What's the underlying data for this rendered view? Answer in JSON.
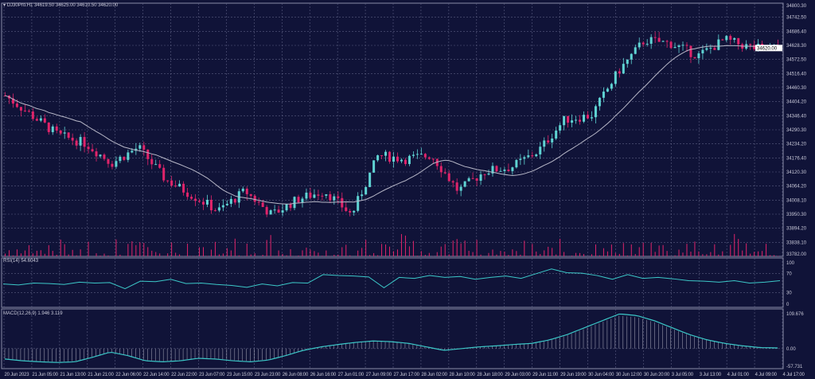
{
  "header": {
    "symbol": "DJ30Pro.H1",
    "ohlc": "34619.50 34625.00 34610.50 34620.00"
  },
  "colors": {
    "background": "#101338",
    "bull": "#5fd3d3",
    "bear": "#e0246a",
    "ma": "#b8b8c8",
    "grid": "#5a5d80",
    "indicator": "#3cc8c8"
  },
  "chart_data": [
    {
      "type": "candlestick",
      "title": "DJ30Pro.H1",
      "current_price": "34620.00",
      "ylim": [
        33782.0,
        34800.3
      ],
      "y_ticks": [
        "34800.30",
        "34742.50",
        "34686.40",
        "34628.30",
        "34572.50",
        "34516.40",
        "34460.30",
        "34404.20",
        "34346.40",
        "34290.30",
        "34234.20",
        "34176.40",
        "34120.30",
        "34064.20",
        "34008.10",
        "33950.30",
        "33894.20",
        "33838.10",
        "33782.00"
      ],
      "x_ticks": [
        "20 Jun 2023",
        "21 Jun 05:00",
        "21 Jun 13:00",
        "21 Jun 21:00",
        "22 Jun 06:00",
        "22 Jun 14:00",
        "22 Jun 22:00",
        "23 Jun 07:00",
        "23 Jun 15:00",
        "23 Jun 23:00",
        "26 Jun 08:00",
        "26 Jun 16:00",
        "27 Jun 01:00",
        "27 Jun 09:00",
        "27 Jun 17:00",
        "28 Jun 02:00",
        "28 Jun 10:00",
        "28 Jun 18:00",
        "29 Jun 03:00",
        "29 Jun 11:00",
        "29 Jun 19:00",
        "30 Jun 04:00",
        "30 Jun 12:00",
        "30 Jun 20:00",
        "3 Jul 05:00",
        "3 Jul 13:00",
        "4 Jul 01:00",
        "4 Jul 09:00",
        "4 Jul 17:00"
      ],
      "close_path": [
        34429,
        34349,
        34269,
        34237,
        34157,
        34221,
        34093,
        34029,
        33965,
        34045,
        33949,
        34013,
        34045,
        33949,
        34189,
        34173,
        34189,
        34045,
        34125,
        34141,
        34205,
        34333,
        34349,
        34525,
        34653,
        34637,
        34589,
        34653,
        34621,
        34615
      ]
    },
    {
      "type": "line",
      "title": "RSI(14) 54.6043",
      "ylim": [
        0,
        100
      ],
      "y_ticks": [
        "100",
        "70",
        "30",
        "0"
      ],
      "values": [
        48,
        46,
        50,
        49,
        47,
        52,
        50,
        51,
        38,
        54,
        53,
        58,
        49,
        50,
        47,
        45,
        41,
        48,
        44,
        51,
        50,
        68,
        66,
        65,
        63,
        40,
        62,
        60,
        66,
        62,
        64,
        58,
        62,
        65,
        60,
        70,
        80,
        72,
        71,
        66,
        58,
        68,
        60,
        62,
        59,
        55,
        54,
        52,
        55,
        50,
        52,
        55
      ]
    },
    {
      "type": "line",
      "title": "MACD(12,26,9) 1.946 3.119",
      "ylim": [
        -57.731,
        109.676
      ],
      "y_ticks": [
        "109.676",
        "0.00",
        "-57.731"
      ],
      "values": [
        -30,
        -35,
        -38,
        -40,
        -38,
        -25,
        -10,
        -20,
        -35,
        -38,
        -35,
        -28,
        -30,
        -35,
        -38,
        -33,
        -20,
        -5,
        5,
        12,
        18,
        22,
        20,
        15,
        5,
        -5,
        0,
        5,
        8,
        12,
        15,
        25,
        40,
        60,
        80,
        100,
        95,
        80,
        60,
        40,
        25,
        15,
        8,
        3,
        1.9
      ]
    }
  ]
}
